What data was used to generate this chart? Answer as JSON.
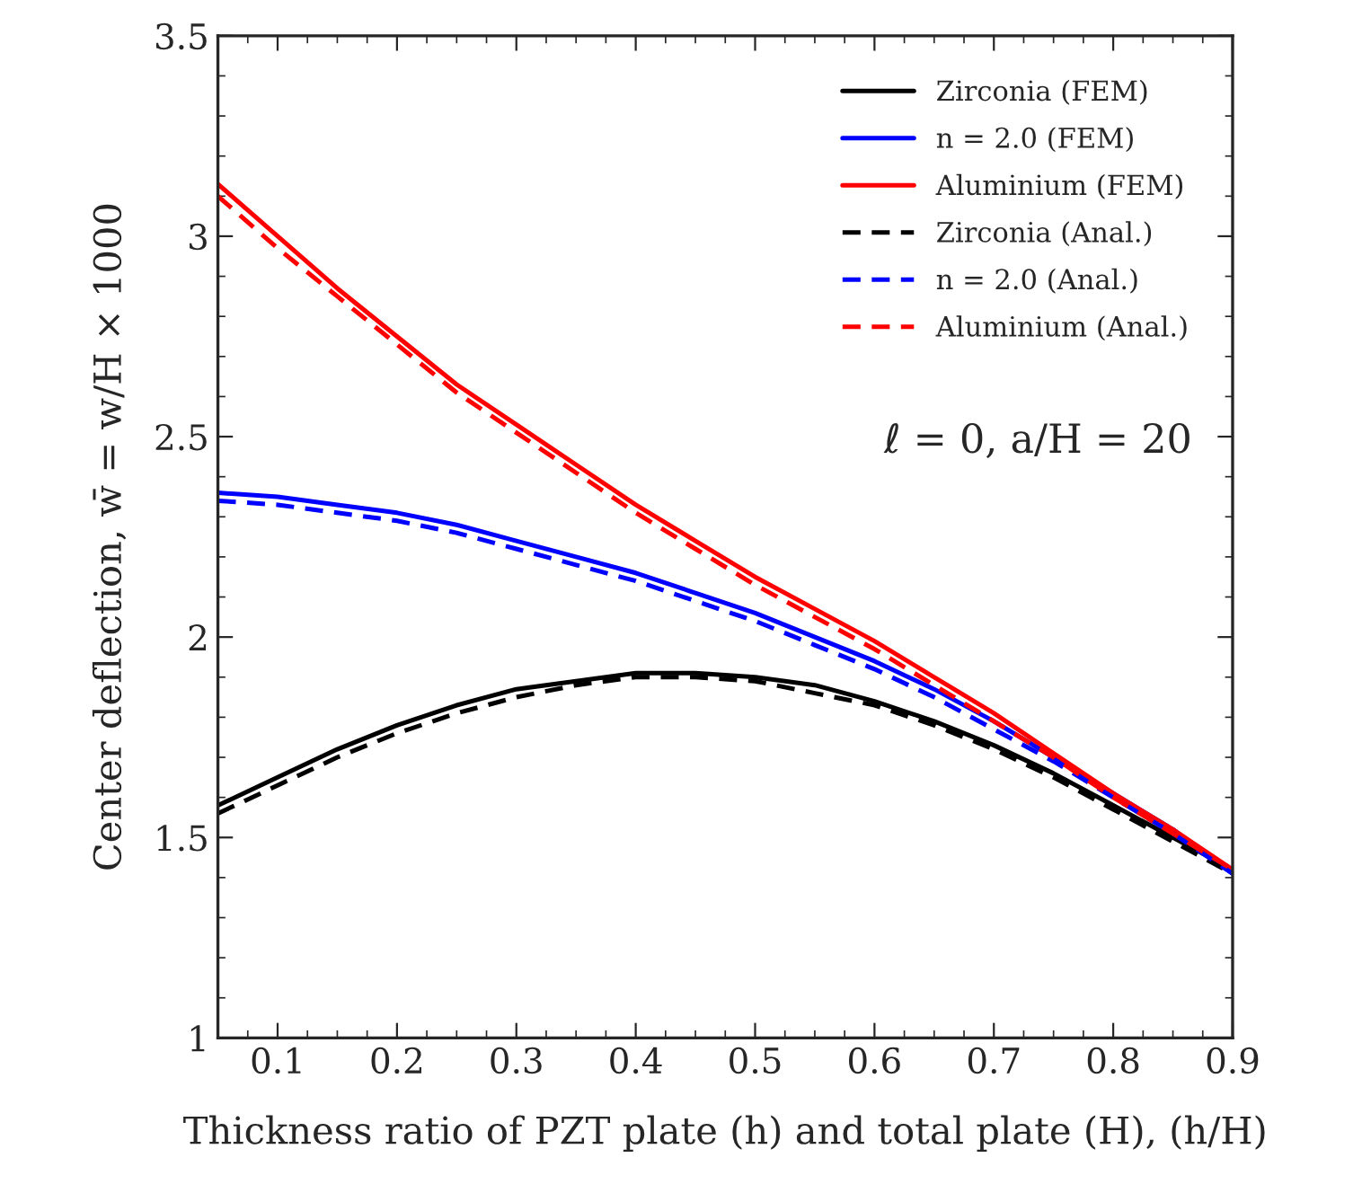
{
  "chart_data": {
    "type": "line",
    "xlabel": "Thickness ratio of PZT plate (h) and total plate (H), (h/H)",
    "ylabel": "Center deflection, w̄ = w/H × 1000",
    "x": [
      0.05,
      0.1,
      0.15,
      0.2,
      0.25,
      0.3,
      0.35,
      0.4,
      0.45,
      0.5,
      0.55,
      0.6,
      0.65,
      0.7,
      0.75,
      0.8,
      0.85,
      0.9
    ],
    "series": [
      {
        "name": "Zirconia (FEM)",
        "color": "#000000",
        "line_style": "solid",
        "values": [
          1.58,
          1.65,
          1.72,
          1.78,
          1.83,
          1.87,
          1.89,
          1.91,
          1.91,
          1.9,
          1.88,
          1.84,
          1.79,
          1.73,
          1.66,
          1.58,
          1.5,
          1.42
        ]
      },
      {
        "name": "n = 2.0 (FEM)",
        "color": "#0000ff",
        "line_style": "solid",
        "values": [
          2.36,
          2.35,
          2.33,
          2.31,
          2.28,
          2.24,
          2.2,
          2.16,
          2.11,
          2.06,
          2.0,
          1.94,
          1.87,
          1.79,
          1.7,
          1.61,
          1.52,
          1.41
        ]
      },
      {
        "name": "Aluminium (FEM)",
        "color": "#ff0000",
        "line_style": "solid",
        "values": [
          3.13,
          3.0,
          2.87,
          2.75,
          2.63,
          2.53,
          2.43,
          2.33,
          2.24,
          2.15,
          2.07,
          1.99,
          1.9,
          1.81,
          1.71,
          1.61,
          1.52,
          1.42
        ]
      },
      {
        "name": "Zirconia (Anal.)",
        "color": "#000000",
        "line_style": "dashed",
        "values": [
          1.56,
          1.63,
          1.7,
          1.76,
          1.81,
          1.85,
          1.88,
          1.9,
          1.9,
          1.89,
          1.86,
          1.83,
          1.78,
          1.72,
          1.65,
          1.57,
          1.49,
          1.41
        ]
      },
      {
        "name": "n = 2.0 (Anal.)",
        "color": "#0000ff",
        "line_style": "dashed",
        "values": [
          2.34,
          2.33,
          2.31,
          2.29,
          2.26,
          2.22,
          2.18,
          2.14,
          2.09,
          2.04,
          1.98,
          1.92,
          1.85,
          1.77,
          1.69,
          1.6,
          1.51,
          1.41
        ]
      },
      {
        "name": "Aluminium (Anal.)",
        "color": "#ff0000",
        "line_style": "dashed",
        "values": [
          3.1,
          2.97,
          2.85,
          2.73,
          2.61,
          2.51,
          2.41,
          2.31,
          2.22,
          2.13,
          2.05,
          1.97,
          1.88,
          1.79,
          1.7,
          1.6,
          1.51,
          1.42
        ]
      }
    ],
    "annotations": [
      "ℓ = 0, a/H = 20"
    ],
    "xlim": [
      0.05,
      0.9
    ],
    "xticks": [
      0.1,
      0.2,
      0.3,
      0.4,
      0.5,
      0.6,
      0.7,
      0.8,
      0.9
    ],
    "ylim": [
      1,
      3.5
    ],
    "yticks": [
      1,
      1.5,
      2,
      2.5,
      3,
      3.5
    ],
    "grid": false,
    "legend": "top right",
    "marker": "none"
  }
}
